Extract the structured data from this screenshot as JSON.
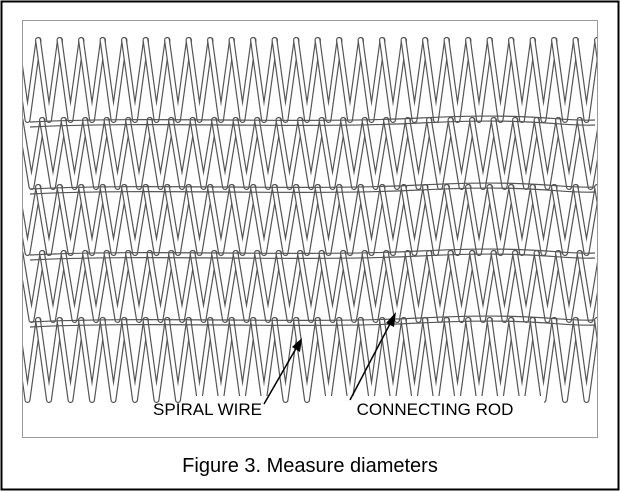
{
  "figure": {
    "labels": {
      "spiral_wire": "SPIRAL WIRE",
      "connecting_rod": "CONNECTING ROD"
    },
    "caption": "Figure 3. Measure diameters"
  }
}
